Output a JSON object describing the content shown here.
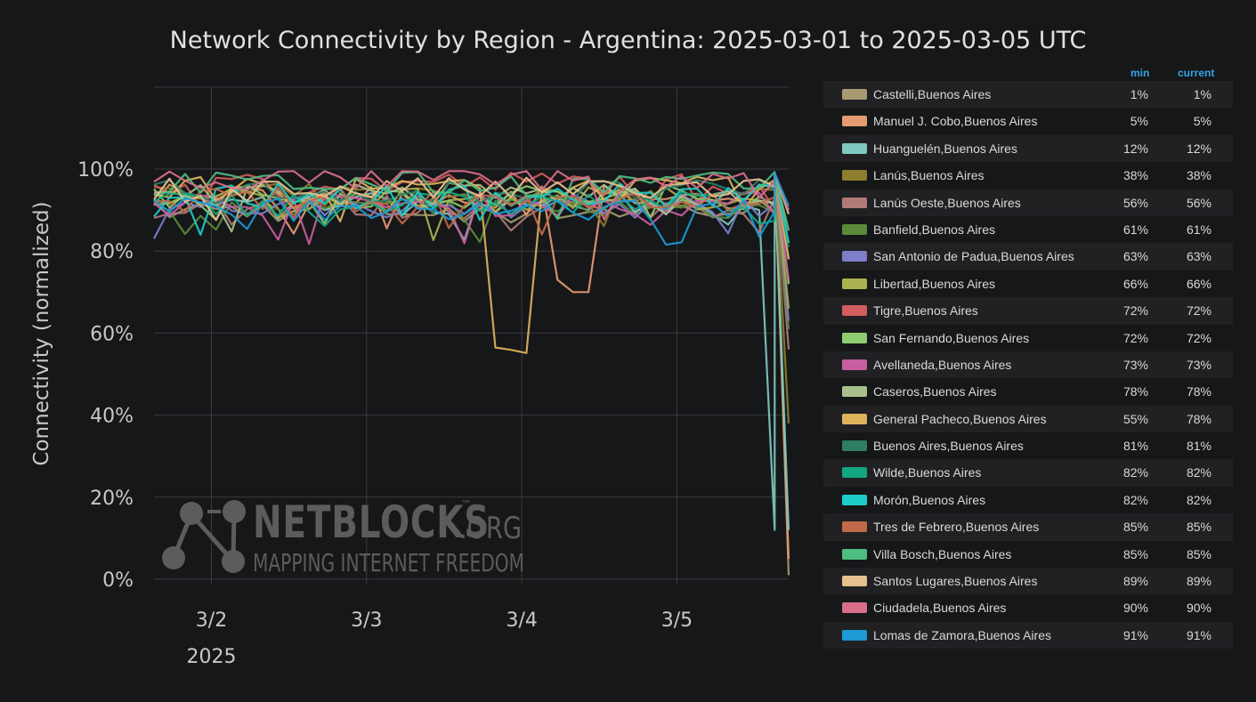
{
  "title": "Network Connectivity by Region - Argentina: 2025-03-01 to 2025-03-05 UTC",
  "watermark": {
    "brand": "NETBLOCKS",
    "tm": "™",
    "org": ".ORG",
    "tagline": "MAPPING INTERNET FREEDOM"
  },
  "legend": {
    "min_header": "min",
    "current_header": "current"
  },
  "chart_data": {
    "type": "line",
    "title": "Network Connectivity by Region - Argentina: 2025-03-01 to 2025-03-05 UTC",
    "ylabel": "Connectivity (normalized)",
    "xlabel": "",
    "ylim": [
      0,
      100
    ],
    "y_ticks": [
      "0%",
      "20%",
      "40%",
      "60%",
      "80%",
      "100%"
    ],
    "x_ticks": [
      {
        "label": "3/2",
        "sub": "2025"
      },
      {
        "label": "3/3",
        "sub": ""
      },
      {
        "label": "3/4",
        "sub": ""
      },
      {
        "label": "3/5",
        "sub": ""
      }
    ],
    "x_range_days": [
      1.63,
      5.72
    ],
    "grid": true,
    "legend_position": "right",
    "series": [
      {
        "name": "Castelli,Buenos Aires",
        "color": "#a79a73",
        "min": "1%",
        "current": "1%",
        "end": 1
      },
      {
        "name": "Manuel J. Cobo,Buenos Aires",
        "color": "#e59b72",
        "min": "5%",
        "current": "5%",
        "end": 5
      },
      {
        "name": "Huanguelén,Buenos Aires",
        "color": "#7ec8c0",
        "min": "12%",
        "current": "12%",
        "end": 12
      },
      {
        "name": "Lanús,Buenos Aires",
        "color": "#8d7d2e",
        "min": "38%",
        "current": "38%",
        "end": 38
      },
      {
        "name": "Lanús Oeste,Buenos Aires",
        "color": "#b07a77",
        "min": "56%",
        "current": "56%",
        "end": 56
      },
      {
        "name": "Banfield,Buenos Aires",
        "color": "#5a8a3a",
        "min": "61%",
        "current": "61%",
        "end": 61
      },
      {
        "name": "San Antonio de Padua,Buenos Aires",
        "color": "#7d7ec9",
        "min": "63%",
        "current": "63%",
        "end": 63
      },
      {
        "name": "Libertad,Buenos Aires",
        "color": "#aab24f",
        "min": "66%",
        "current": "66%",
        "end": 66
      },
      {
        "name": "Tigre,Buenos Aires",
        "color": "#d45d5d",
        "min": "72%",
        "current": "72%",
        "end": 72
      },
      {
        "name": "San Fernando,Buenos Aires",
        "color": "#8fcc71",
        "min": "72%",
        "current": "72%",
        "end": 72
      },
      {
        "name": "Avellaneda,Buenos Aires",
        "color": "#c85ea0",
        "min": "73%",
        "current": "73%",
        "end": 73
      },
      {
        "name": "Caseros,Buenos Aires",
        "color": "#a8c08c",
        "min": "78%",
        "current": "78%",
        "end": 78
      },
      {
        "name": "General Pacheco,Buenos Aires",
        "color": "#deb35c",
        "min": "55%",
        "current": "78%",
        "end": 78
      },
      {
        "name": "Buenos Aires,Buenos Aires",
        "color": "#2e7d64",
        "min": "81%",
        "current": "81%",
        "end": 81
      },
      {
        "name": "Wilde,Buenos Aires",
        "color": "#12a681",
        "min": "82%",
        "current": "82%",
        "end": 82
      },
      {
        "name": "Morón,Buenos Aires",
        "color": "#1ecdc7",
        "min": "82%",
        "current": "82%",
        "end": 82
      },
      {
        "name": "Tres de Febrero,Buenos Aires",
        "color": "#c06a4a",
        "min": "85%",
        "current": "85%",
        "end": 85
      },
      {
        "name": "Villa Bosch,Buenos Aires",
        "color": "#4ebd80",
        "min": "85%",
        "current": "85%",
        "end": 85
      },
      {
        "name": "Santos Lugares,Buenos Aires",
        "color": "#e6c18f",
        "min": "89%",
        "current": "89%",
        "end": 89
      },
      {
        "name": "Ciudadela,Buenos Aires",
        "color": "#d86f8a",
        "min": "90%",
        "current": "90%",
        "end": 90
      },
      {
        "name": "Lomas de Zamora,Buenos Aires",
        "color": "#1b9ad4",
        "min": "91%",
        "current": "91%",
        "end": 91
      }
    ],
    "notable_dips": [
      {
        "series": "General Pacheco,Buenos Aires",
        "start": "3/3 ~19:00",
        "end": "3/4 ~03:00",
        "min_value": 55
      },
      {
        "series": "Manuel J. Cobo,Buenos Aires",
        "start": "3/4 ~03:00",
        "end": "3/4 ~12:00",
        "min_value": 70
      },
      {
        "series": "Huanguelén,Buenos Aires",
        "start": "3/5 ~12:00",
        "end": "3/5 ~17:00",
        "min_value": 12
      }
    ]
  }
}
